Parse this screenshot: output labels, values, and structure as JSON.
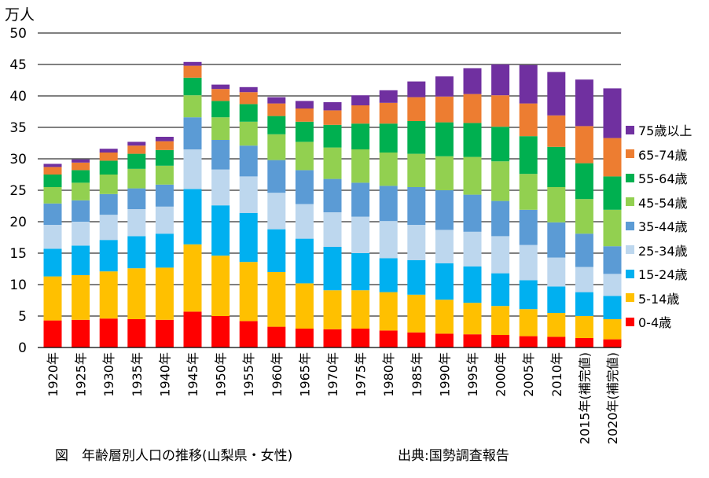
{
  "figure": {
    "caption": "図　年齢層別人口の推移(山梨県・女性)",
    "source": "出典:国勢調査報告"
  },
  "colors": {
    "0-4歳": "#ff0000",
    "5-14歳": "#ffc000",
    "15-24歳": "#00b0f0",
    "25-34歳": "#bdd7ee",
    "35-44歳": "#5b9bd5",
    "45-54歳": "#92d050",
    "55-64歳": "#00b050",
    "65-74歳": "#ed7d31",
    "75歳以上": "#7030a0"
  },
  "chart_data": {
    "type": "bar",
    "stacked": true,
    "unit_label": "万人",
    "ylim": [
      0,
      50
    ],
    "yticks": [
      0,
      5,
      10,
      15,
      20,
      25,
      30,
      35,
      40,
      45,
      50
    ],
    "grid": true,
    "legend_position": "right",
    "categories": [
      "1920年",
      "1925年",
      "1930年",
      "1935年",
      "1940年",
      "1945年",
      "1950年",
      "1955年",
      "1960年",
      "1965年",
      "1970年",
      "1975年",
      "1980年",
      "1985年",
      "1990年",
      "1995年",
      "2000年",
      "2005年",
      "2010年",
      "2015年(補完値)",
      "2020年(補完値)"
    ],
    "series": [
      {
        "name": "0-4歳",
        "values": [
          4.3,
          4.4,
          4.6,
          4.5,
          4.4,
          5.7,
          5.0,
          4.2,
          3.3,
          3.0,
          2.9,
          3.0,
          2.7,
          2.4,
          2.2,
          2.1,
          2.0,
          1.8,
          1.7,
          1.5,
          1.3
        ]
      },
      {
        "name": "5-14歳",
        "values": [
          7.0,
          7.1,
          7.5,
          8.1,
          8.3,
          10.7,
          9.6,
          9.4,
          8.7,
          7.2,
          6.2,
          6.1,
          6.1,
          6.0,
          5.4,
          5.0,
          4.6,
          4.3,
          3.8,
          3.5,
          3.2
        ]
      },
      {
        "name": "15-24歳",
        "values": [
          4.4,
          4.7,
          5.0,
          5.1,
          5.4,
          8.8,
          8.0,
          7.8,
          6.8,
          7.1,
          6.9,
          5.9,
          5.4,
          5.5,
          5.8,
          5.8,
          5.2,
          4.6,
          4.2,
          3.8,
          3.7
        ]
      },
      {
        "name": "25-34歳",
        "values": [
          3.8,
          3.8,
          4.0,
          4.3,
          4.3,
          6.3,
          5.7,
          5.8,
          5.8,
          5.5,
          5.5,
          5.8,
          5.9,
          5.6,
          5.3,
          5.5,
          5.9,
          5.6,
          4.6,
          4.0,
          3.5
        ]
      },
      {
        "name": "35-44歳",
        "values": [
          3.4,
          3.4,
          3.3,
          3.3,
          3.5,
          5.1,
          4.7,
          4.9,
          5.2,
          5.4,
          5.3,
          5.4,
          5.6,
          6.0,
          6.3,
          5.9,
          5.6,
          5.6,
          5.6,
          5.3,
          4.4
        ]
      },
      {
        "name": "45-54歳",
        "values": [
          2.6,
          2.8,
          3.1,
          3.1,
          3.0,
          3.5,
          3.6,
          3.8,
          4.1,
          4.5,
          5.0,
          5.3,
          5.3,
          5.3,
          5.4,
          6.0,
          6.3,
          5.7,
          5.6,
          5.5,
          5.8
        ]
      },
      {
        "name": "55-64歳",
        "values": [
          2.0,
          2.0,
          2.2,
          2.4,
          2.5,
          2.8,
          2.6,
          2.8,
          2.9,
          3.2,
          3.6,
          4.1,
          4.6,
          5.2,
          5.4,
          5.4,
          5.5,
          6.0,
          6.4,
          5.7,
          5.3
        ]
      },
      {
        "name": "65-74歳",
        "values": [
          1.2,
          1.2,
          1.3,
          1.3,
          1.4,
          1.9,
          1.9,
          1.9,
          2.0,
          2.1,
          2.3,
          2.9,
          3.3,
          3.8,
          4.1,
          4.6,
          5.0,
          5.2,
          5.0,
          5.9,
          6.1
        ]
      },
      {
        "name": "75歳以上",
        "values": [
          0.5,
          0.5,
          0.6,
          0.6,
          0.7,
          0.6,
          0.7,
          0.8,
          1.0,
          1.2,
          1.3,
          1.6,
          2.0,
          2.5,
          3.2,
          4.1,
          4.9,
          6.1,
          6.9,
          7.4,
          7.9
        ]
      }
    ]
  }
}
